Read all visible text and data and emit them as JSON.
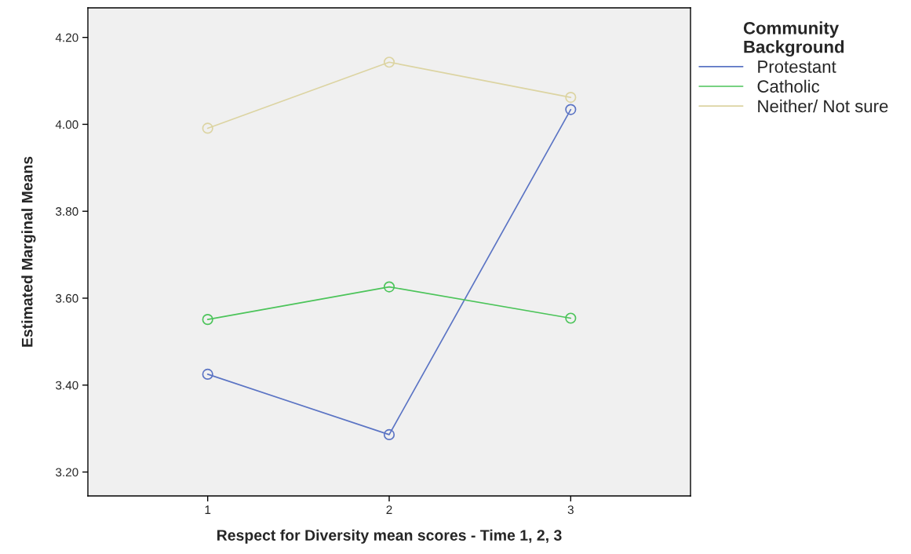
{
  "chart_data": {
    "type": "line",
    "xlabel": "Respect for Diversity mean scores - Time 1, 2, 3",
    "ylabel": "Estimated Marginal Means",
    "legend_title": "Community\nBackground",
    "categories": [
      "1",
      "2",
      "3"
    ],
    "series": [
      {
        "name": "Protestant",
        "color": "#5b74c4",
        "values": [
          3.425,
          3.286,
          4.034
        ]
      },
      {
        "name": "Catholic",
        "color": "#4cc45a",
        "values": [
          3.551,
          3.626,
          3.554
        ]
      },
      {
        "name": "Neither/ Not sure",
        "color": "#dcd4a2",
        "values": [
          3.991,
          4.143,
          4.062
        ]
      }
    ],
    "ylim": [
      3.145,
      4.268
    ],
    "yticks": [
      {
        "value": 3.2,
        "label": "3.20"
      },
      {
        "value": 3.4,
        "label": "3.40"
      },
      {
        "value": 3.6,
        "label": "3.60"
      },
      {
        "value": 3.8,
        "label": "3.80"
      },
      {
        "value": 4.0,
        "label": "4.00"
      },
      {
        "value": 4.2,
        "label": "4.20"
      }
    ],
    "marker": "circle",
    "line_style": "solid",
    "legend": "top right",
    "grid": false
  }
}
